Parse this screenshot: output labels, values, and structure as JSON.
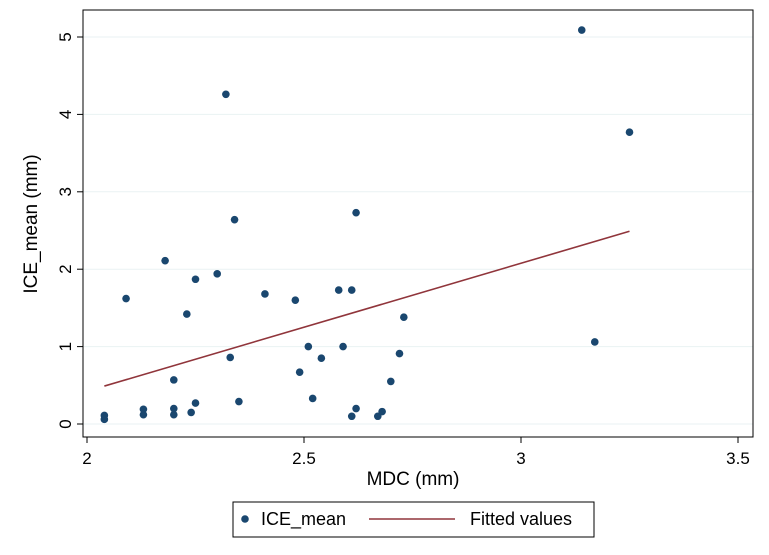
{
  "chart_data": {
    "type": "scatter",
    "xlabel": "MDC (mm)",
    "ylabel": "ICE_mean (mm)",
    "xlim": [
      2,
      3.5
    ],
    "ylim": [
      0,
      5
    ],
    "xticks": [
      "2",
      "2.5",
      "3",
      "3.5"
    ],
    "yticks": [
      "0",
      "1",
      "2",
      "3",
      "4",
      "5"
    ],
    "grid": "horizontal",
    "legend_position": "bottom",
    "colors": {
      "scatter": "#1a476f",
      "fit": "#90353b",
      "grid": "#eaf2f3",
      "frame": "#000000"
    },
    "series": [
      {
        "name": "ICE_mean",
        "kind": "scatter",
        "points": [
          [
            2.04,
            0.06
          ],
          [
            2.04,
            0.11
          ],
          [
            2.09,
            1.62
          ],
          [
            2.13,
            0.12
          ],
          [
            2.13,
            0.19
          ],
          [
            2.18,
            2.11
          ],
          [
            2.2,
            0.57
          ],
          [
            2.2,
            0.12
          ],
          [
            2.2,
            0.2
          ],
          [
            2.23,
            1.42
          ],
          [
            2.24,
            0.15
          ],
          [
            2.25,
            1.87
          ],
          [
            2.25,
            0.27
          ],
          [
            2.3,
            1.94
          ],
          [
            2.32,
            4.26
          ],
          [
            2.33,
            0.86
          ],
          [
            2.34,
            2.64
          ],
          [
            2.35,
            0.29
          ],
          [
            2.41,
            1.68
          ],
          [
            2.48,
            1.6
          ],
          [
            2.49,
            0.67
          ],
          [
            2.51,
            1.0
          ],
          [
            2.52,
            0.33
          ],
          [
            2.54,
            0.85
          ],
          [
            2.58,
            1.73
          ],
          [
            2.59,
            1.0
          ],
          [
            2.61,
            1.73
          ],
          [
            2.61,
            0.1
          ],
          [
            2.62,
            2.73
          ],
          [
            2.62,
            0.2
          ],
          [
            2.67,
            0.1
          ],
          [
            2.68,
            0.16
          ],
          [
            2.7,
            0.55
          ],
          [
            2.72,
            0.91
          ],
          [
            2.73,
            1.38
          ],
          [
            3.14,
            5.09
          ],
          [
            3.17,
            1.06
          ],
          [
            3.25,
            3.77
          ]
        ]
      },
      {
        "name": "Fitted values",
        "kind": "line",
        "x": [
          2.04,
          3.25
        ],
        "y": [
          0.49,
          2.49
        ]
      }
    ]
  }
}
